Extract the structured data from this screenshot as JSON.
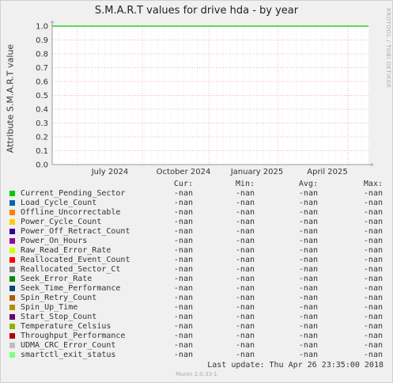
{
  "title": "S.M.A.R.T values for drive hda - by year",
  "watermark": "RRDTOOL / TOBI OETIKER",
  "chart_data": {
    "type": "line",
    "ylabel": "Attribute S.M.A.R.T value",
    "ylim": [
      0,
      1.0
    ],
    "yticks": [
      "1.0",
      "0.9",
      "0.8",
      "0.7",
      "0.6",
      "0.5",
      "0.4",
      "0.3",
      "0.2",
      "0.1",
      "0.0"
    ],
    "xticks": [
      "July 2024",
      "October 2024",
      "January 2025",
      "April 2025"
    ],
    "grid": true,
    "series": [
      {
        "name": "Current_Pending_Sector",
        "color": "#00cc00"
      },
      {
        "name": "Load_Cycle_Count",
        "color": "#0066b3"
      },
      {
        "name": "Offline_Uncorrectable",
        "color": "#ff8000"
      },
      {
        "name": "Power_Cycle_Count",
        "color": "#ffcc00"
      },
      {
        "name": "Power_Off_Retract_Count",
        "color": "#330099"
      },
      {
        "name": "Power_On_Hours",
        "color": "#990099"
      },
      {
        "name": "Raw_Read_Error_Rate",
        "color": "#ccff00"
      },
      {
        "name": "Reallocated_Event_Count",
        "color": "#ff0000"
      },
      {
        "name": "Reallocated_Sector_Ct",
        "color": "#808080"
      },
      {
        "name": "Seek_Error_Rate",
        "color": "#008f00"
      },
      {
        "name": "Seek_Time_Performance",
        "color": "#00487d"
      },
      {
        "name": "Spin_Retry_Count",
        "color": "#b35a00"
      },
      {
        "name": "Spin_Up_Time",
        "color": "#b38f00"
      },
      {
        "name": "Start_Stop_Count",
        "color": "#6b006b"
      },
      {
        "name": "Temperature_Celsius",
        "color": "#8fb300"
      },
      {
        "name": "Throughput_Performance",
        "color": "#b30000"
      },
      {
        "name": "UDMA_CRC_Error_Count",
        "color": "#bebebe"
      },
      {
        "name": "smartctl_exit_status",
        "color": "#80ff80"
      }
    ],
    "line_value": 1.0,
    "line_color": "#00cc00"
  },
  "legend": {
    "headers": [
      "Cur:",
      "Min:",
      "Avg:",
      "Max:"
    ],
    "value": "-nan"
  },
  "last_update": "Last update:  Thu Apr 26 23:35:00 2018",
  "munin": "Munin 2.0.33-1"
}
